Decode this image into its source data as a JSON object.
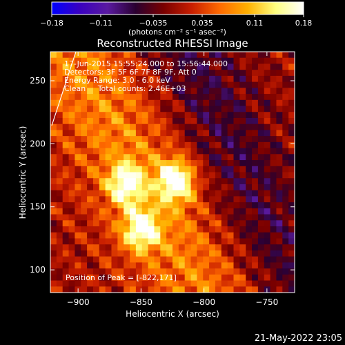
{
  "chart_data": {
    "type": "heatmap",
    "title": "Reconstructed RHESSI Image",
    "xlabel": "Heliocentric X (arcsec)",
    "ylabel": "Heliocentric Y (arcsec)",
    "xlim": [
      -922,
      -728
    ],
    "ylim": [
      82,
      273
    ],
    "x_ticks": [
      -900,
      -850,
      -800,
      -750
    ],
    "y_ticks": [
      100,
      150,
      200,
      250
    ],
    "x_tick_labels": [
      "−900",
      "−850",
      "−800",
      "−750"
    ],
    "y_tick_labels": [
      "100",
      "150",
      "200",
      "250"
    ],
    "colorbar": {
      "range": [
        -0.18,
        0.18
      ],
      "ticks": [
        -0.18,
        -0.11,
        -0.035,
        0.035,
        0.11,
        0.18
      ],
      "tick_labels": [
        "−0.18",
        "−0.11",
        "−0.035",
        "0.035",
        "0.11",
        "0.18"
      ],
      "unit": "(photons cm⁻² s⁻¹ asec⁻²)",
      "colors": [
        "#0000ff",
        "#3a00c0",
        "#5a1aa0",
        "#2a0030",
        "#7a0000",
        "#c81e00",
        "#ff6a00",
        "#ffb000",
        "#ffff80",
        "#ffffff"
      ]
    },
    "sources": [
      {
        "x": -822,
        "y": 171,
        "peak": 0.18
      },
      {
        "x": -850,
        "y": 132,
        "peak": 0.15
      },
      {
        "x": -862,
        "y": 168,
        "peak": 0.14
      }
    ],
    "annotations": {
      "time": "17-Jun-2015 15:55:24.000 to 15:56:44.000",
      "detectors": "Detectors: 3F 5F 6F 7F 8F 9F, Att 0",
      "energy": "Energy Range: 3.0 - 6.0 keV",
      "clean": "Clean     Total counts: 2.46E+03",
      "peak": "Position of Peak = [-822,171]"
    },
    "footer_date": "21-May-2022 23:05",
    "grid": false
  }
}
